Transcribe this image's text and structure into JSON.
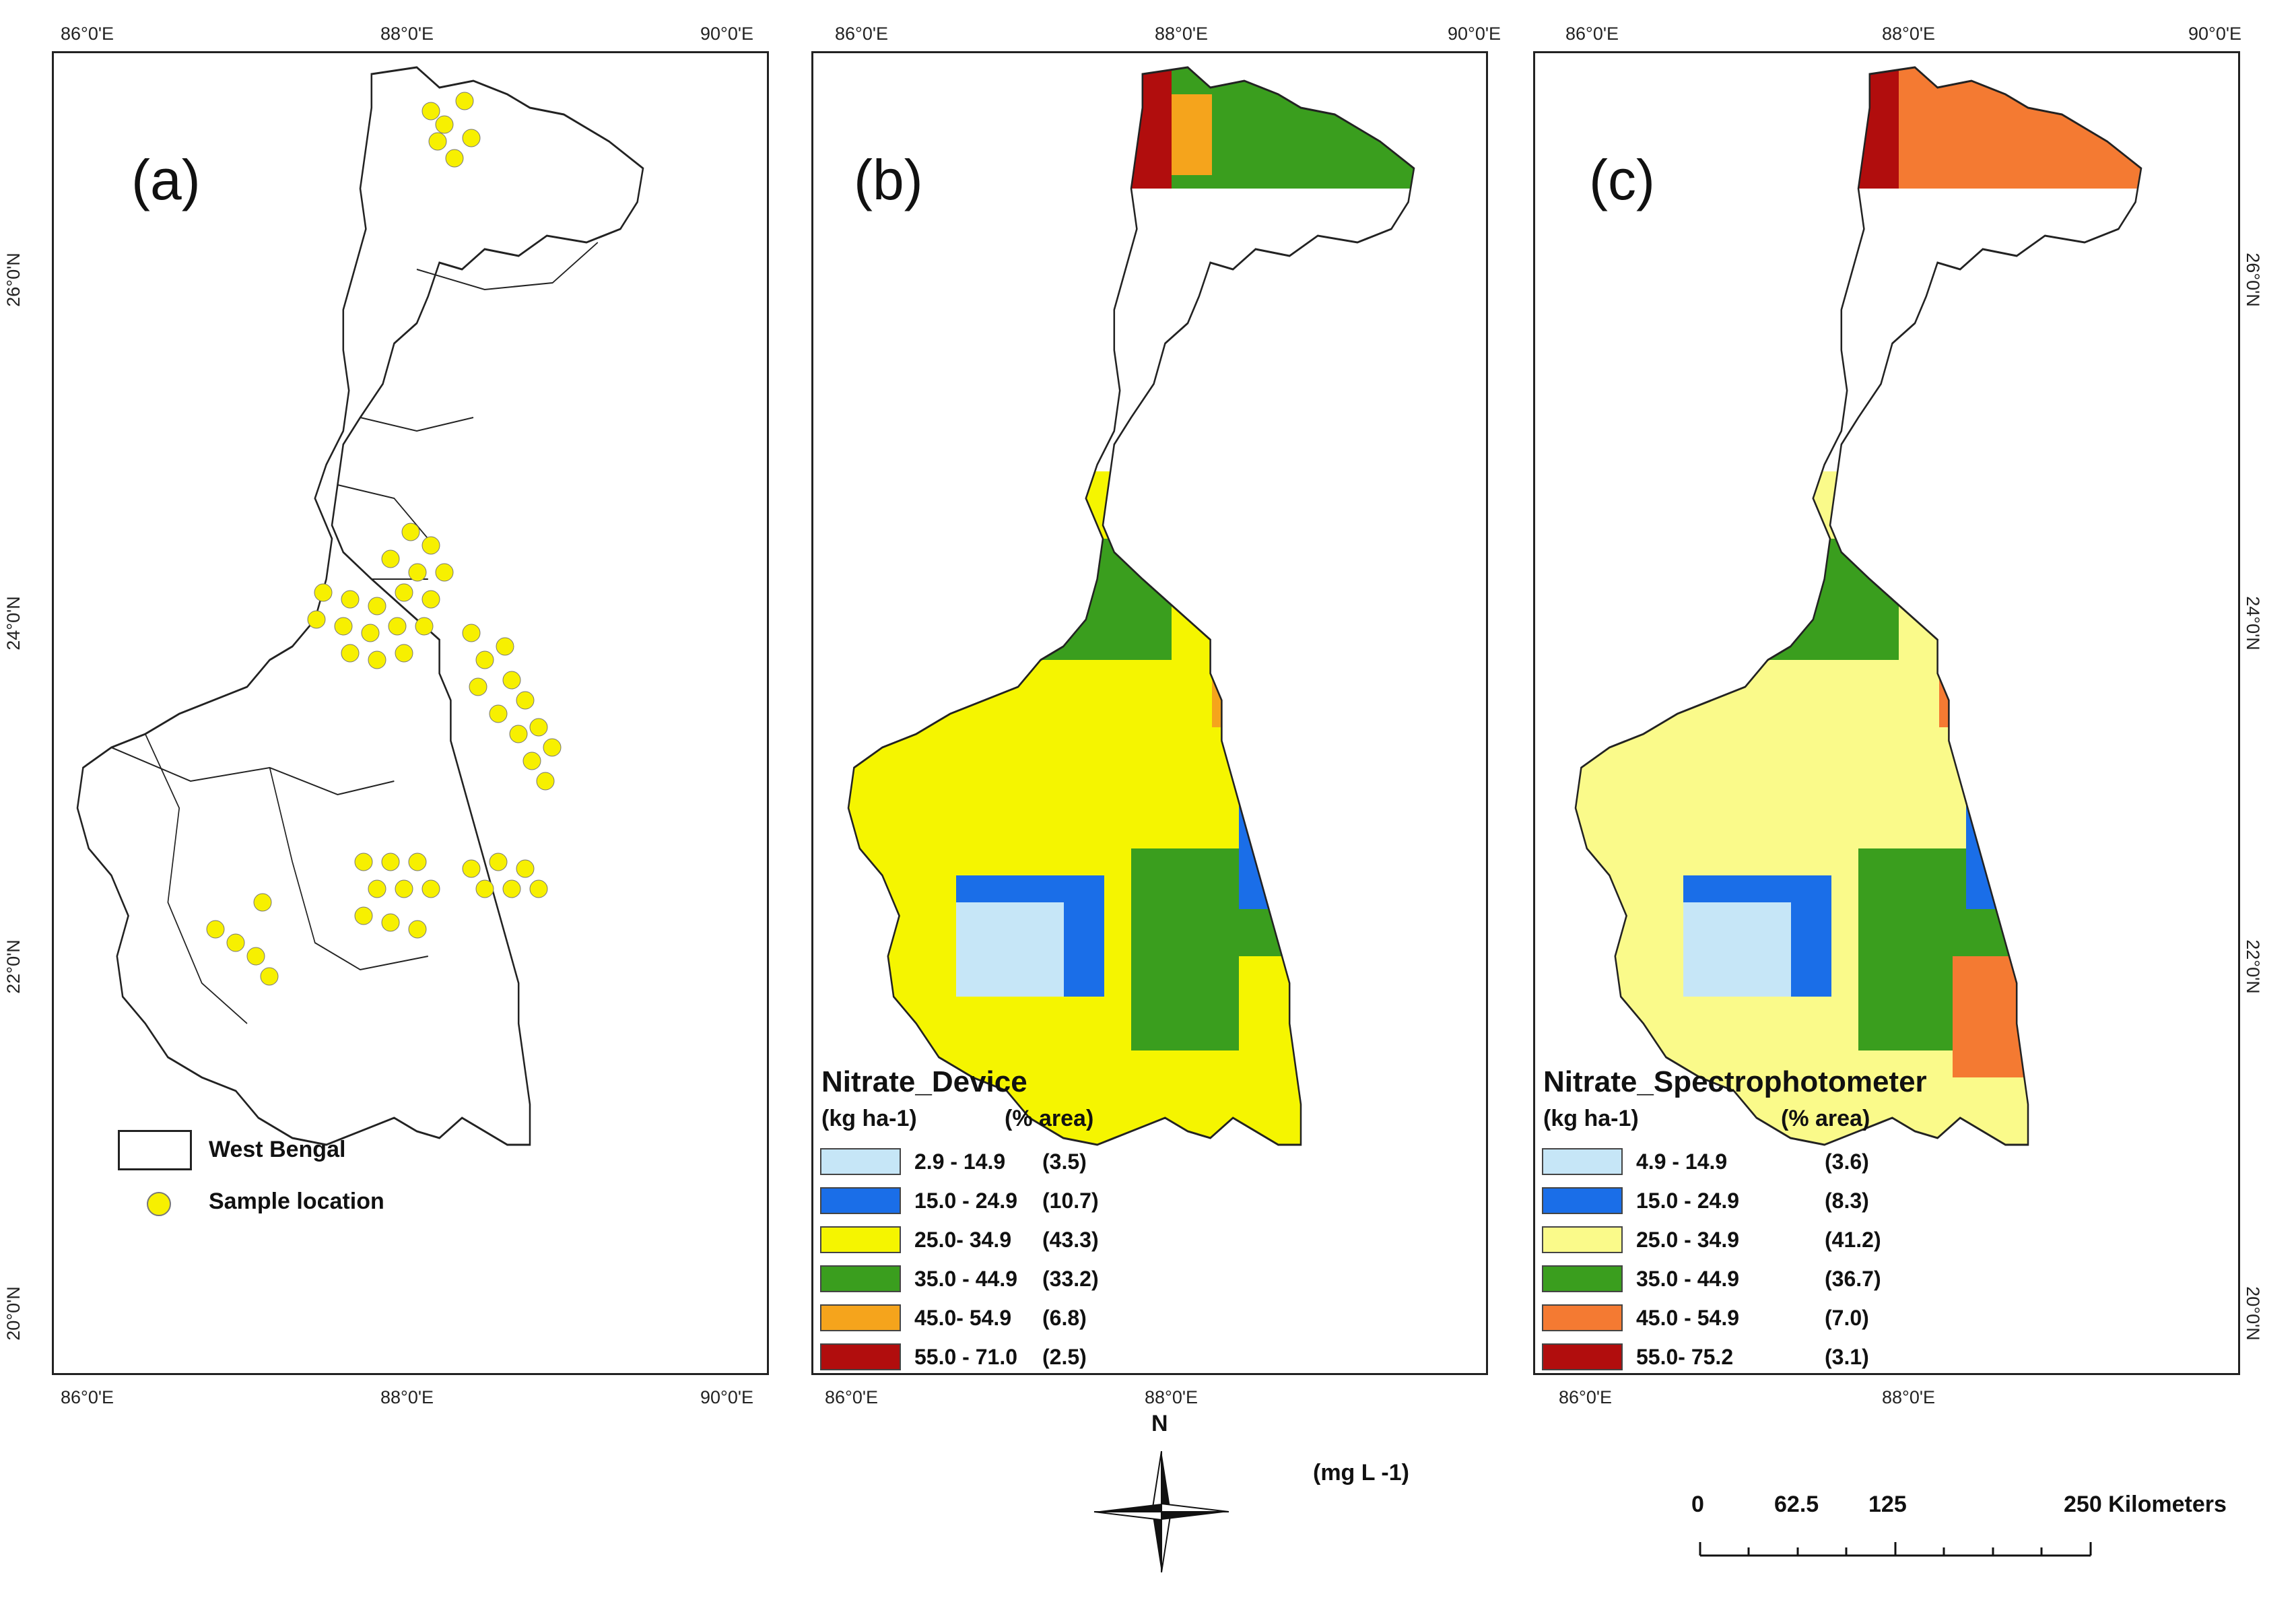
{
  "panels": {
    "a": {
      "label": "(a)",
      "top_ticks": [
        "86°0'E",
        "88°0'E",
        "90°0'E"
      ],
      "bottom_ticks": [
        "86°0'E",
        "88°0'E",
        "90°0'E"
      ],
      "left_ticks": [
        "26°0'N",
        "24°0'N",
        "22°0'N",
        "20°0'N"
      ],
      "legend": {
        "boundary": "West Bengal",
        "sample": "Sample location"
      }
    },
    "b": {
      "label": "(b)",
      "top_ticks": [
        "86°0'E",
        "88°0'E",
        "90°0'E"
      ],
      "bottom_ticks": [
        "86°0'E",
        "88°0'E"
      ],
      "legend_title": "Nitrate_Device",
      "unit_label": "(kg ha-1)",
      "area_label": "(% area)",
      "classes": [
        {
          "range": "2.9 - 14.9",
          "pct": "(3.5)",
          "color": "#c6e6f7"
        },
        {
          "range": "15.0 - 24.9",
          "pct": "(10.7)",
          "color": "#1a6ee8"
        },
        {
          "range": "25.0- 34.9",
          "pct": "(43.3)",
          "color": "#f5f500"
        },
        {
          "range": "35.0 - 44.9",
          "pct": "(33.2)",
          "color": "#3a9e1e"
        },
        {
          "range": "45.0- 54.9",
          "pct": "(6.8)",
          "color": "#f5a41c"
        },
        {
          "range": "55.0 - 71.0",
          "pct": "(2.5)",
          "color": "#b10d0d"
        }
      ]
    },
    "c": {
      "label": "(c)",
      "top_ticks": [
        "86°0'E",
        "88°0'E",
        "90°0'E"
      ],
      "bottom_ticks": [
        "86°0'E",
        "88°0'E"
      ],
      "right_ticks": [
        "26°0'N",
        "24°0'N",
        "22°0'N",
        "20°0'N"
      ],
      "legend_title": "Nitrate_Spectrophotometer",
      "unit_label": "(kg ha-1)",
      "area_label": "(% area)",
      "classes": [
        {
          "range": "4.9 - 14.9",
          "pct": "(3.6)",
          "color": "#c6e6f7"
        },
        {
          "range": "15.0 - 24.9",
          "pct": "(8.3)",
          "color": "#1a6ee8"
        },
        {
          "range": "25.0 - 34.9",
          "pct": "(41.2)",
          "color": "#fafa8a"
        },
        {
          "range": "35.0 - 44.9",
          "pct": "(36.7)",
          "color": "#3a9e1e"
        },
        {
          "range": "45.0 - 54.9",
          "pct": "(7.0)",
          "color": "#f47a32"
        },
        {
          "range": "55.0- 75.2",
          "pct": "(3.1)",
          "color": "#b10d0d"
        }
      ]
    }
  },
  "north_arrow": "N",
  "unit_note": "(mg L -1)",
  "scale_bar": {
    "labels": [
      "0",
      "62.5",
      "125",
      "250 Kilometers"
    ]
  },
  "colors": {
    "sample_fill": "#f7f000",
    "outline": "#222222"
  }
}
